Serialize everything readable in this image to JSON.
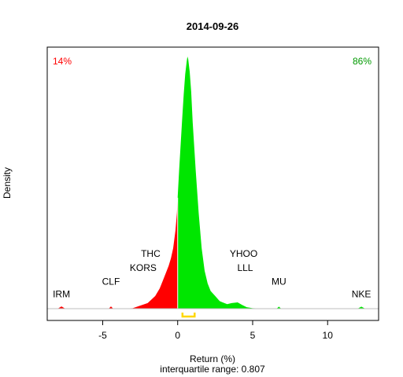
{
  "chart_data": {
    "type": "area",
    "title": "2014-09-26",
    "xlabel": "Return (%)",
    "ylabel": "Density",
    "subtitle": "interquartile range: 0.807",
    "xlim": [
      -8.7,
      13.4
    ],
    "ylim": [
      0,
      1.0
    ],
    "x_ticks": [
      -5,
      0,
      5,
      10
    ],
    "grid": false,
    "split_x": 0.0,
    "negative_share": "14%",
    "positive_share": "86%",
    "colors": {
      "negative": "#ff0000",
      "positive": "#00e600",
      "iqr": "#ffd700",
      "baseline": "#bebebe"
    },
    "iqr_range": [
      0.32,
      1.13
    ],
    "density": {
      "x": [
        -8.7,
        -8.0,
        -7.75,
        -7.5,
        -7.0,
        -5.0,
        -4.6,
        -4.45,
        -4.3,
        -4.0,
        -3.0,
        -2.5,
        -2.0,
        -1.5,
        -1.2,
        -1.0,
        -0.8,
        -0.6,
        -0.45,
        -0.3,
        -0.15,
        -0.05,
        0.0,
        0.1,
        0.2,
        0.3,
        0.4,
        0.5,
        0.6,
        0.65,
        0.7,
        0.8,
        0.9,
        1.0,
        1.2,
        1.4,
        1.6,
        1.8,
        2.0,
        2.2,
        2.5,
        2.8,
        3.0,
        3.3,
        3.6,
        4.0,
        4.3,
        4.6,
        5.0,
        6.0,
        6.6,
        6.75,
        6.9,
        7.5,
        11.0,
        12.0,
        12.25,
        12.5,
        13.4
      ],
      "y": [
        0,
        0,
        0.009,
        0,
        0,
        0,
        0,
        0.009,
        0,
        0,
        0.002,
        0.012,
        0.022,
        0.05,
        0.08,
        0.11,
        0.14,
        0.17,
        0.2,
        0.24,
        0.31,
        0.38,
        0.44,
        0.55,
        0.65,
        0.75,
        0.85,
        0.93,
        0.98,
        1.0,
        0.99,
        0.94,
        0.86,
        0.74,
        0.55,
        0.38,
        0.24,
        0.15,
        0.1,
        0.07,
        0.05,
        0.03,
        0.025,
        0.018,
        0.022,
        0.025,
        0.015,
        0.006,
        0.002,
        0.0,
        0.0,
        0.008,
        0.0,
        0.0,
        0.0,
        0.0,
        0.008,
        0.0,
        0.0
      ]
    },
    "annotations": [
      {
        "text": "IRM",
        "x": -7.75,
        "y": 0.045
      },
      {
        "text": "CLF",
        "x": -4.45,
        "y": 0.095
      },
      {
        "text": "KORS",
        "x": -2.3,
        "y": 0.15
      },
      {
        "text": "THC",
        "x": -1.8,
        "y": 0.205
      },
      {
        "text": "YHOO",
        "x": 4.4,
        "y": 0.205
      },
      {
        "text": "LLL",
        "x": 4.5,
        "y": 0.15
      },
      {
        "text": "MU",
        "x": 6.75,
        "y": 0.095
      },
      {
        "text": "NKE",
        "x": 12.25,
        "y": 0.045
      }
    ]
  }
}
